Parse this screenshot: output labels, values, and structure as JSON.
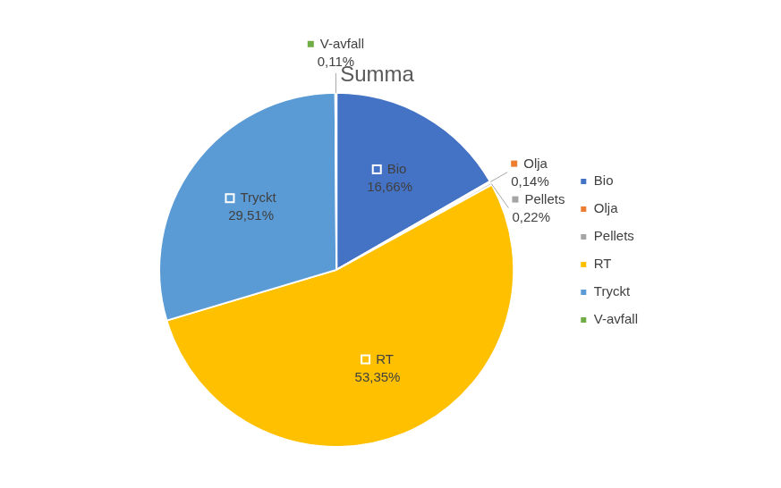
{
  "chart_data": {
    "type": "pie",
    "title": "Summa",
    "categories": [
      "Bio",
      "Olja",
      "Pellets",
      "RT",
      "Tryckt",
      "V-avfall"
    ],
    "values": [
      16.66,
      0.14,
      0.22,
      53.35,
      29.51,
      0.11
    ],
    "value_labels": [
      "16,66%",
      "0,14%",
      "0,22%",
      "53,35%",
      "29,51%",
      "0,11%"
    ],
    "colors": [
      "#4472c4",
      "#ed7d31",
      "#a5a5a5",
      "#ffc000",
      "#5b9bd5",
      "#70ad47"
    ],
    "legend": "right",
    "data_labels": true
  }
}
